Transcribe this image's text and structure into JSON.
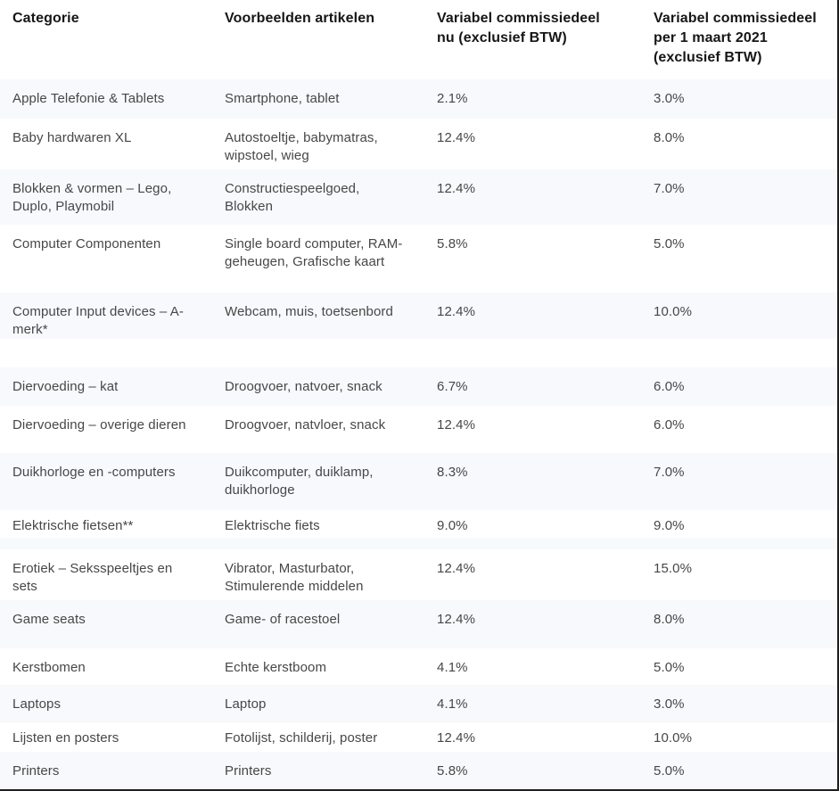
{
  "table": {
    "columns": {
      "category": "Categorie",
      "examples": "Voorbeelden artikelen",
      "commission_now": "Variabel commissiedeel nu (exclusief BTW)",
      "commission_new": "Variabel commissiedeel per 1 maart 2021 (exclusief BTW)"
    },
    "rows": [
      {
        "category": "Apple Telefonie & Tablets",
        "examples": "Smartphone, tablet",
        "commission_now": "2.1%",
        "commission_new": "3.0%"
      },
      {
        "category": "Baby hardwaren XL",
        "examples": "Autostoeltje, babymatras, wipstoel, wieg",
        "commission_now": "12.4%",
        "commission_new": "8.0%"
      },
      {
        "category": "Blokken & vormen – Lego, Duplo, Playmobil",
        "examples": "Constructiespeelgoed, Blokken",
        "commission_now": "12.4%",
        "commission_new": "7.0%"
      },
      {
        "category": "Computer Componenten",
        "examples": "Single board computer, RAM-geheugen, Grafische kaart",
        "commission_now": "5.8%",
        "commission_new": "5.0%"
      },
      {
        "category": "Computer Input devices – A-merk*",
        "examples": "Webcam, muis, toetsenbord",
        "commission_now": "12.4%",
        "commission_new": "10.0%"
      },
      {
        "category": "Diervoeding – kat",
        "examples": "Droogvoer, natvoer, snack",
        "commission_now": "6.7%",
        "commission_new": "6.0%"
      },
      {
        "category": "Diervoeding – overige dieren",
        "examples": "Droogvoer, natvloer, snack",
        "commission_now": "12.4%",
        "commission_new": "6.0%"
      },
      {
        "category": "Duikhorloge en -computers",
        "examples": "Duikcomputer, duiklamp, duikhorloge",
        "commission_now": "8.3%",
        "commission_new": "7.0%"
      },
      {
        "category": "Elektrische fietsen**",
        "examples": "Elektrische fiets",
        "commission_now": "9.0%",
        "commission_new": "9.0%"
      },
      {
        "category": "Erotiek – Seksspeeltjes en sets",
        "examples": "Vibrator, Masturbator, Stimulerende middelen",
        "commission_now": "12.4%",
        "commission_new": "15.0%"
      },
      {
        "category": "Game seats",
        "examples": "Game- of racestoel",
        "commission_now": "12.4%",
        "commission_new": "8.0%"
      },
      {
        "category": "Kerstbomen",
        "examples": "Echte kerstboom",
        "commission_now": "4.1%",
        "commission_new": "5.0%"
      },
      {
        "category": "Laptops",
        "examples": "Laptop",
        "commission_now": "4.1%",
        "commission_new": "3.0%"
      },
      {
        "category": "Lijsten en posters",
        "examples": "Fotolijst, schilderij, poster",
        "commission_now": "12.4%",
        "commission_new": "10.0%"
      },
      {
        "category": "Printers",
        "examples": "Printers",
        "commission_now": "5.8%",
        "commission_new": "5.0%"
      }
    ],
    "colors": {
      "row_shaded_bg": "#f7f9fc",
      "body_text": "#474747",
      "header_text": "#161616",
      "edge_border": "#1e1e1e"
    }
  }
}
